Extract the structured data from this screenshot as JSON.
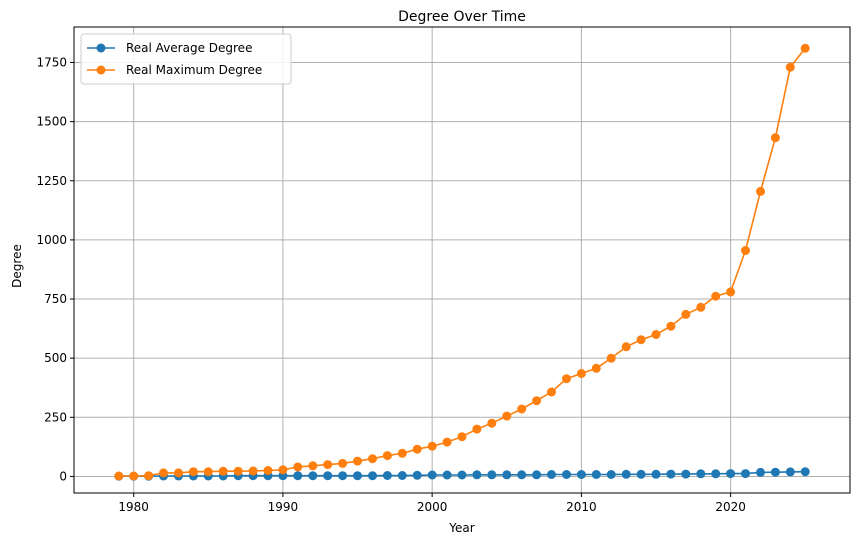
{
  "chart_data": {
    "type": "line",
    "title": "Degree Over Time",
    "xlabel": "Year",
    "ylabel": "Degree",
    "xlim": [
      1976,
      2028
    ],
    "ylim": [
      -70,
      1900
    ],
    "x_ticks": [
      "1980",
      "1990",
      "2000",
      "2010",
      "2020"
    ],
    "y_ticks": [
      "0",
      "250",
      "500",
      "750",
      "1000",
      "1250",
      "1500",
      "1750"
    ],
    "grid": true,
    "legend_position": "top-left",
    "x": [
      1979,
      1980,
      1981,
      1982,
      1983,
      1984,
      1985,
      1986,
      1987,
      1988,
      1989,
      1990,
      1991,
      1992,
      1993,
      1994,
      1995,
      1996,
      1997,
      1998,
      1999,
      2000,
      2001,
      2002,
      2003,
      2004,
      2005,
      2006,
      2007,
      2008,
      2009,
      2010,
      2011,
      2012,
      2013,
      2014,
      2015,
      2016,
      2017,
      2018,
      2019,
      2020,
      2021,
      2022,
      2023,
      2024,
      2025
    ],
    "series": [
      {
        "name": "Real Average Degree",
        "color": "#1f77b4",
        "values": [
          1,
          1,
          1,
          2,
          2,
          2,
          2,
          2,
          3,
          3,
          3,
          3,
          3,
          3,
          3,
          3,
          3,
          3,
          4,
          4,
          5,
          6,
          6,
          6,
          7,
          7,
          7,
          7,
          7,
          8,
          8,
          8,
          8,
          8,
          9,
          9,
          9,
          10,
          10,
          11,
          11,
          12,
          12,
          17,
          18,
          19,
          20
        ]
      },
      {
        "name": "Real Maximum Degree",
        "color": "#ff7f0e",
        "values": [
          2,
          2,
          3,
          15,
          15,
          20,
          20,
          22,
          22,
          23,
          25,
          28,
          40,
          45,
          50,
          55,
          65,
          75,
          88,
          98,
          115,
          128,
          145,
          168,
          200,
          225,
          255,
          285,
          320,
          357,
          413,
          435,
          457,
          500,
          548,
          578,
          600,
          635,
          685,
          715,
          762,
          780,
          955,
          1205,
          1432,
          1730,
          1810
        ]
      }
    ]
  }
}
